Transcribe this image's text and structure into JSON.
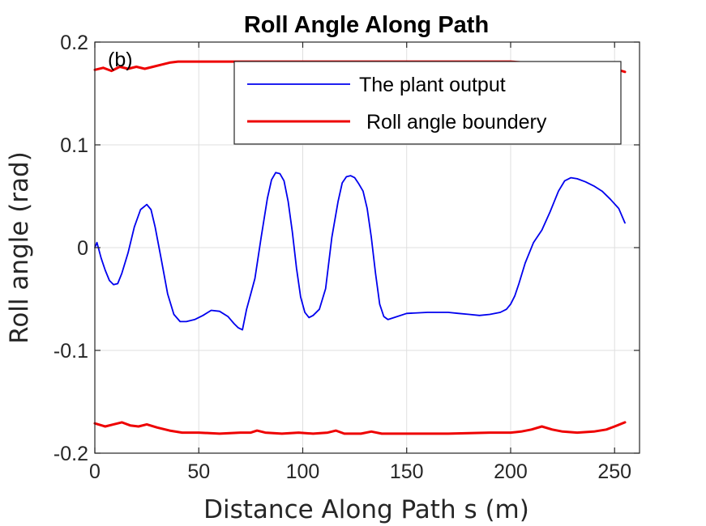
{
  "chart_data": {
    "type": "line",
    "title": "Roll Angle Along Path",
    "panel_label": "(b)",
    "xlabel": "Distance Along Path s (m)",
    "ylabel": "Roll angle (rad)",
    "xlim": [
      0,
      262
    ],
    "ylim": [
      -0.2,
      0.2
    ],
    "xticks": [
      0,
      50,
      100,
      150,
      200,
      250
    ],
    "xtick_labels": [
      "0",
      "50",
      "100",
      "150",
      "200",
      "250"
    ],
    "yticks": [
      -0.2,
      -0.1,
      0,
      0.1,
      0.2
    ],
    "ytick_labels": [
      "-0.2",
      "-0.1",
      "0",
      "0.1",
      "0.2"
    ],
    "grid": true,
    "legend_placement": "top-right",
    "series": [
      {
        "name": "The plant output",
        "color": "#0000ee",
        "x": [
          0,
          1,
          3,
          5,
          7,
          9,
          11,
          13,
          16,
          19,
          22,
          25,
          27,
          29,
          32,
          35,
          38,
          41,
          44,
          48,
          52,
          56,
          60,
          64,
          67,
          69,
          71,
          73,
          75,
          77,
          80,
          83,
          85,
          87,
          89,
          91,
          93,
          95,
          97,
          99,
          101,
          103,
          105,
          108,
          111,
          114,
          117,
          119,
          121,
          123,
          125,
          127,
          129,
          131,
          133,
          135,
          137,
          139,
          141,
          144,
          150,
          160,
          170,
          175,
          180,
          185,
          190,
          195,
          198,
          200,
          202,
          204,
          207,
          211,
          215,
          219,
          223,
          226,
          229,
          232,
          236,
          240,
          244,
          248,
          252,
          255
        ],
        "values": [
          0.0,
          0.005,
          -0.01,
          -0.022,
          -0.032,
          -0.036,
          -0.035,
          -0.025,
          -0.005,
          0.02,
          0.037,
          0.042,
          0.037,
          0.02,
          -0.012,
          -0.045,
          -0.065,
          -0.072,
          -0.072,
          -0.07,
          -0.066,
          -0.061,
          -0.062,
          -0.067,
          -0.074,
          -0.078,
          -0.08,
          -0.06,
          -0.045,
          -0.03,
          0.01,
          0.048,
          0.066,
          0.073,
          0.072,
          0.065,
          0.045,
          0.015,
          -0.02,
          -0.048,
          -0.063,
          -0.068,
          -0.066,
          -0.06,
          -0.04,
          0.01,
          0.045,
          0.063,
          0.069,
          0.07,
          0.068,
          0.062,
          0.055,
          0.038,
          0.01,
          -0.025,
          -0.055,
          -0.067,
          -0.07,
          -0.068,
          -0.064,
          -0.063,
          -0.063,
          -0.064,
          -0.065,
          -0.066,
          -0.065,
          -0.063,
          -0.06,
          -0.055,
          -0.047,
          -0.035,
          -0.015,
          0.005,
          0.017,
          0.035,
          0.055,
          0.065,
          0.068,
          0.067,
          0.064,
          0.06,
          0.055,
          0.047,
          0.038,
          0.024
        ]
      },
      {
        "name": "Roll angle boundery",
        "color": "#ee0000",
        "x": [
          0,
          4,
          8,
          12,
          16,
          20,
          24,
          28,
          32,
          36,
          40,
          50,
          100,
          150,
          200,
          250,
          255
        ],
        "values": [
          0.173,
          0.175,
          0.172,
          0.176,
          0.174,
          0.176,
          0.174,
          0.176,
          0.178,
          0.18,
          0.181,
          0.181,
          0.181,
          0.181,
          0.181,
          0.174,
          0.171
        ]
      },
      {
        "name": "",
        "color": "#ee0000",
        "x": [
          0,
          5,
          9,
          13,
          17,
          21,
          25,
          30,
          36,
          42,
          50,
          60,
          70,
          75,
          78,
          82,
          90,
          98,
          105,
          112,
          116,
          120,
          128,
          133,
          138,
          150,
          170,
          190,
          200,
          205,
          210,
          215,
          220,
          225,
          232,
          240,
          246,
          250,
          255
        ],
        "values": [
          -0.171,
          -0.174,
          -0.172,
          -0.17,
          -0.173,
          -0.174,
          -0.172,
          -0.175,
          -0.178,
          -0.18,
          -0.18,
          -0.181,
          -0.18,
          -0.18,
          -0.178,
          -0.18,
          -0.181,
          -0.18,
          -0.181,
          -0.18,
          -0.178,
          -0.181,
          -0.181,
          -0.179,
          -0.181,
          -0.181,
          -0.181,
          -0.18,
          -0.18,
          -0.179,
          -0.177,
          -0.174,
          -0.177,
          -0.179,
          -0.18,
          -0.179,
          -0.177,
          -0.174,
          -0.17
        ]
      }
    ]
  }
}
